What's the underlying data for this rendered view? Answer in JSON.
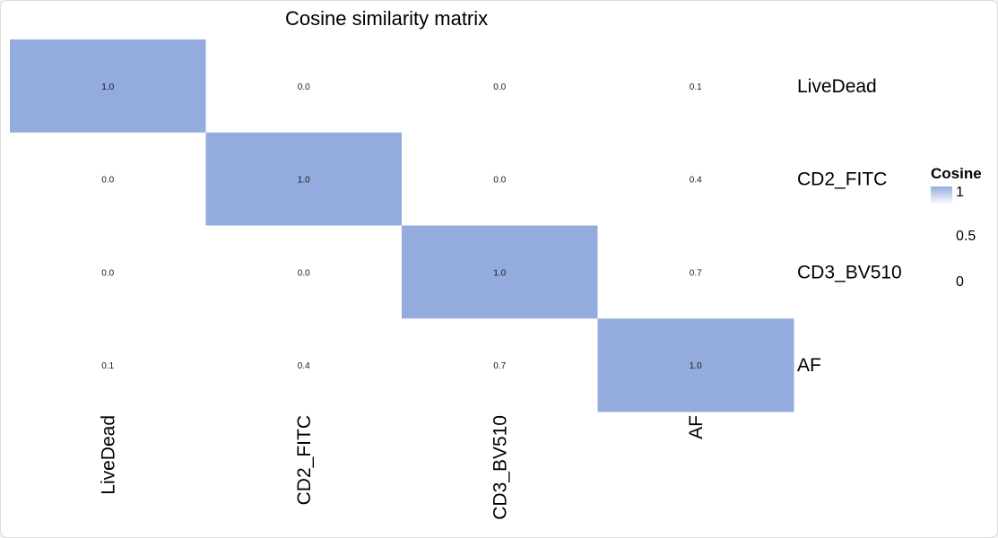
{
  "chart_data": {
    "type": "heatmap",
    "title": "Cosine similarity matrix",
    "rows": [
      "LiveDead",
      "CD2_FITC",
      "CD3_BV510",
      "AF"
    ],
    "columns": [
      "LiveDead",
      "CD2_FITC",
      "CD3_BV510",
      "AF"
    ],
    "values": [
      [
        1.0,
        0.0,
        0.0,
        0.1
      ],
      [
        0.0,
        1.0,
        0.0,
        0.4
      ],
      [
        0.0,
        0.0,
        1.0,
        0.7
      ],
      [
        0.1,
        0.4,
        0.7,
        1.0
      ]
    ],
    "value_labels": [
      [
        "1.0",
        "0.0",
        "0.0",
        "0.1"
      ],
      [
        "0.0",
        "1.0",
        "0.0",
        "0.4"
      ],
      [
        "0.0",
        "0.0",
        "1.0",
        "0.7"
      ],
      [
        "0.1",
        "0.4",
        "0.7",
        "1.0"
      ]
    ],
    "highlight_color": "#94abdd",
    "background_color": "#ffffff",
    "legend": {
      "title": "Cosine",
      "ticks": [
        "1",
        "0.5",
        "0"
      ],
      "gradient_top": "#94abdd",
      "gradient_bottom": "#ffffff",
      "placement": "right"
    }
  }
}
